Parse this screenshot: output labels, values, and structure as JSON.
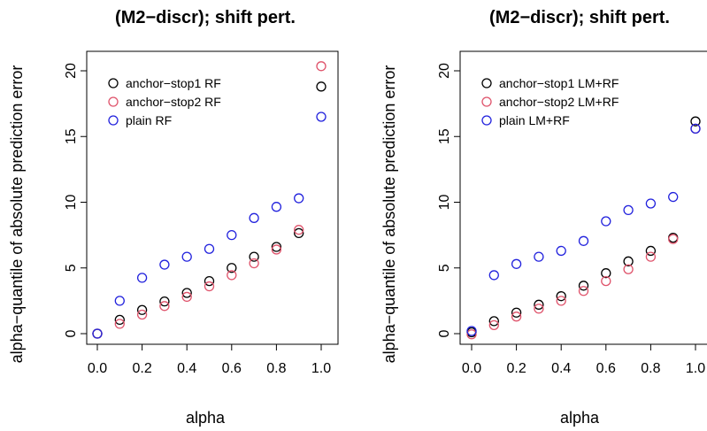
{
  "chart_data": [
    {
      "type": "scatter",
      "title": "(M2−discr); shift pert.",
      "xlabel": "alpha",
      "ylabel": "alpha−quantile of absolute prediction error",
      "xlim": [
        0,
        1
      ],
      "ylim": [
        0,
        20
      ],
      "xticks": [
        "0.0",
        "0.2",
        "0.4",
        "0.6",
        "0.8",
        "1.0"
      ],
      "yticks": [
        "0",
        "5",
        "10",
        "15",
        "20"
      ],
      "grid": false,
      "legend_position": "top-left",
      "x": [
        0.0,
        0.1,
        0.2,
        0.3,
        0.4,
        0.5,
        0.6,
        0.7,
        0.8,
        0.9,
        1.0
      ],
      "series": [
        {
          "name": "anchor−stop1 RF",
          "color": "#000000",
          "values": [
            0.0,
            1.05,
            1.8,
            2.45,
            3.1,
            4.0,
            5.0,
            5.85,
            6.6,
            7.65,
            18.8
          ]
        },
        {
          "name": "anchor−stop2 RF",
          "color": "#DF536B",
          "values": [
            0.0,
            0.75,
            1.45,
            2.1,
            2.8,
            3.6,
            4.45,
            5.35,
            6.4,
            7.9,
            20.35
          ]
        },
        {
          "name": "plain RF",
          "color": "#2222DD",
          "values": [
            0.0,
            2.5,
            4.25,
            5.25,
            5.85,
            6.45,
            7.5,
            8.8,
            9.65,
            10.3,
            16.5
          ]
        }
      ]
    },
    {
      "type": "scatter",
      "title": "(M2−discr); shift pert.",
      "xlabel": "alpha",
      "ylabel": "alpha−quantile of absolute prediction error",
      "xlim": [
        0,
        1
      ],
      "ylim": [
        0,
        20
      ],
      "xticks": [
        "0.0",
        "0.2",
        "0.4",
        "0.6",
        "0.8",
        "1.0"
      ],
      "yticks": [
        "0",
        "5",
        "10",
        "15",
        "20"
      ],
      "grid": false,
      "legend_position": "top-left",
      "x": [
        0.0,
        0.1,
        0.2,
        0.3,
        0.4,
        0.5,
        0.6,
        0.7,
        0.8,
        0.9,
        1.0
      ],
      "series": [
        {
          "name": "anchor−stop1 LM+RF",
          "color": "#000000",
          "values": [
            0.1,
            0.95,
            1.6,
            2.2,
            2.85,
            3.65,
            4.6,
            5.5,
            6.3,
            7.3,
            16.15
          ]
        },
        {
          "name": "anchor−stop2 LM+RF",
          "color": "#DF536B",
          "values": [
            -0.05,
            0.65,
            1.3,
            1.9,
            2.5,
            3.25,
            4.0,
            4.9,
            5.85,
            7.2,
            15.6
          ]
        },
        {
          "name": "plain LM+RF",
          "color": "#2222DD",
          "values": [
            0.2,
            4.45,
            5.3,
            5.85,
            6.3,
            7.05,
            8.55,
            9.4,
            9.9,
            10.4,
            15.6
          ]
        }
      ]
    }
  ]
}
